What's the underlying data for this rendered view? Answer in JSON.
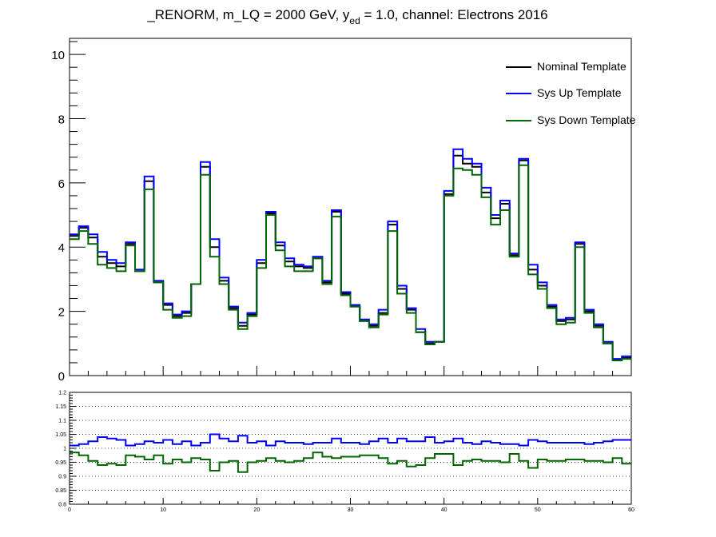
{
  "title": {
    "main": "_RENORM, m_LQ = 2000 GeV, y",
    "sub": "ed",
    "rest": " = 1.0, channel: Electrons 2016"
  },
  "legend": {
    "position": "top-right",
    "entries": [
      {
        "label": "Nominal Template",
        "color": "#000000"
      },
      {
        "label": "Sys Up Template",
        "color": "#0000ff"
      },
      {
        "label": "Sys Down Template",
        "color": "#006600"
      }
    ]
  },
  "chart_data": [
    {
      "type": "line",
      "step": true,
      "xlim": [
        0,
        60
      ],
      "ylim": [
        0,
        10.5
      ],
      "yticks": [
        "0",
        "2",
        "4",
        "6",
        "8",
        "10"
      ],
      "grid": false,
      "series": [
        {
          "name": "Nominal Template",
          "color": "#000000",
          "values": [
            4.35,
            4.6,
            4.3,
            3.7,
            3.5,
            3.4,
            4.1,
            3.25,
            6.05,
            2.9,
            2.2,
            1.85,
            1.95,
            2.85,
            6.5,
            4.0,
            2.95,
            2.1,
            1.55,
            1.9,
            3.5,
            5.05,
            4.05,
            3.55,
            3.4,
            3.35,
            3.65,
            2.9,
            5.1,
            2.55,
            2.15,
            1.7,
            1.55,
            1.95,
            4.7,
            2.7,
            2.05,
            1.35,
            1.0,
            1.05,
            5.65,
            6.85,
            6.6,
            6.5,
            5.7,
            4.9,
            5.35,
            3.75,
            6.7,
            3.3,
            2.8,
            2.15,
            1.7,
            1.75,
            4.1,
            2.0,
            1.55,
            1.0,
            0.5,
            0.55
          ]
        },
        {
          "name": "Sys Up Template",
          "color": "#0000ff",
          "values": [
            4.4,
            4.65,
            4.4,
            3.85,
            3.6,
            3.5,
            4.15,
            3.3,
            6.2,
            2.95,
            2.25,
            1.9,
            2.0,
            2.85,
            6.65,
            4.25,
            3.05,
            2.15,
            1.65,
            1.95,
            3.6,
            5.1,
            4.15,
            3.65,
            3.45,
            3.4,
            3.7,
            2.95,
            5.15,
            2.6,
            2.2,
            1.75,
            1.6,
            2.05,
            4.8,
            2.8,
            2.1,
            1.45,
            1.05,
            1.05,
            5.75,
            7.05,
            6.75,
            6.6,
            5.85,
            5.0,
            5.45,
            3.8,
            6.75,
            3.45,
            2.9,
            2.2,
            1.75,
            1.8,
            4.15,
            2.05,
            1.6,
            1.05,
            0.52,
            0.6
          ]
        },
        {
          "name": "Sys Down Template",
          "color": "#006600",
          "values": [
            4.25,
            4.5,
            4.1,
            3.45,
            3.35,
            3.25,
            4.05,
            3.25,
            5.8,
            2.9,
            2.05,
            1.8,
            1.85,
            2.85,
            6.25,
            3.7,
            2.85,
            2.05,
            1.45,
            1.85,
            3.35,
            5.0,
            3.9,
            3.4,
            3.25,
            3.25,
            3.65,
            2.85,
            4.95,
            2.5,
            2.15,
            1.7,
            1.5,
            1.9,
            4.5,
            2.55,
            1.95,
            1.35,
            0.97,
            1.05,
            5.6,
            6.45,
            6.4,
            6.25,
            5.55,
            4.7,
            5.15,
            3.7,
            6.55,
            3.15,
            2.7,
            2.1,
            1.6,
            1.65,
            4.0,
            1.95,
            1.5,
            1.0,
            0.47,
            0.52
          ]
        }
      ]
    },
    {
      "type": "line",
      "step": true,
      "xlim": [
        0,
        60
      ],
      "ylim": [
        0.8,
        1.2
      ],
      "xticks": [
        "0",
        "10",
        "20",
        "30",
        "40",
        "50",
        "60"
      ],
      "yticks": [
        "0.8",
        "0.85",
        "0.9",
        "0.95",
        "1",
        "1.05",
        "1.1",
        "1.15",
        "1.2"
      ],
      "grid": true,
      "series": [
        {
          "name": "Sys Up Template",
          "color": "#0000ff",
          "values": [
            1.01,
            1.015,
            1.025,
            1.04,
            1.035,
            1.03,
            1.01,
            1.015,
            1.025,
            1.02,
            1.03,
            1.015,
            1.025,
            1.01,
            1.02,
            1.05,
            1.035,
            1.025,
            1.045,
            1.02,
            1.025,
            1.01,
            1.025,
            1.02,
            1.02,
            1.015,
            1.02,
            1.02,
            1.035,
            1.02,
            1.02,
            1.015,
            1.025,
            1.035,
            1.02,
            1.035,
            1.025,
            1.025,
            1.04,
            1.02,
            1.025,
            1.035,
            1.02,
            1.015,
            1.025,
            1.02,
            1.015,
            1.015,
            1.01,
            1.03,
            1.025,
            1.02,
            1.02,
            1.02,
            1.02,
            1.015,
            1.02,
            1.025,
            1.03,
            1.03
          ]
        },
        {
          "name": "Sys Down Template",
          "color": "#006600",
          "values": [
            0.985,
            0.975,
            0.955,
            0.94,
            0.945,
            0.94,
            0.975,
            0.97,
            0.96,
            0.975,
            0.945,
            0.96,
            0.95,
            0.965,
            0.96,
            0.92,
            0.95,
            0.955,
            0.915,
            0.95,
            0.955,
            0.965,
            0.955,
            0.95,
            0.955,
            0.965,
            0.985,
            0.97,
            0.965,
            0.97,
            0.97,
            0.975,
            0.975,
            0.965,
            0.945,
            0.955,
            0.935,
            0.94,
            0.965,
            0.98,
            0.98,
            0.94,
            0.955,
            0.96,
            0.955,
            0.955,
            0.95,
            0.98,
            0.955,
            0.93,
            0.96,
            0.955,
            0.955,
            0.96,
            0.96,
            0.955,
            0.955,
            0.95,
            0.965,
            0.945
          ]
        }
      ]
    }
  ]
}
